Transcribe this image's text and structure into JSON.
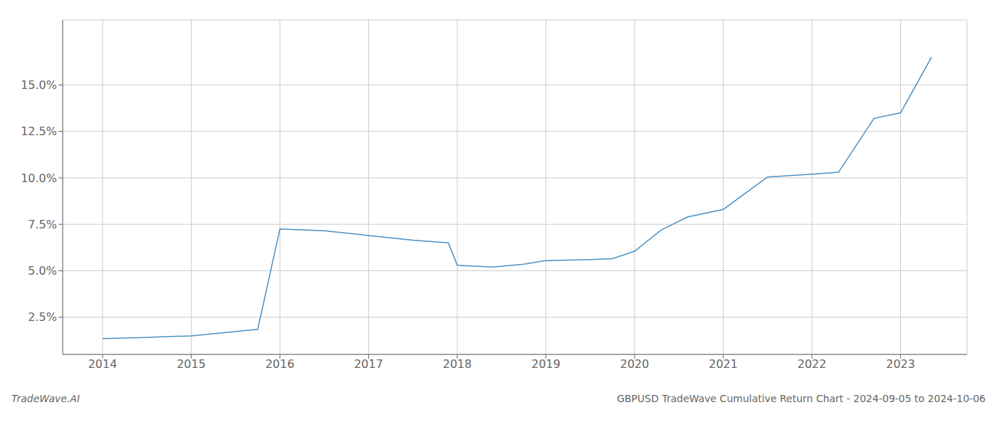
{
  "chart_data": {
    "type": "line",
    "title": "GBPUSD TradeWave Cumulative Return Chart - 2024-09-05 to 2024-10-06",
    "annotations": [
      "TradeWave.AI"
    ],
    "x": [
      2014.0,
      2014.4,
      2015.0,
      2015.75,
      2016.0,
      2016.5,
      2017.0,
      2017.5,
      2017.9,
      2018.0,
      2018.4,
      2018.75,
      2019.0,
      2019.5,
      2019.75,
      2020.0,
      2020.3,
      2020.6,
      2021.0,
      2021.5,
      2022.0,
      2022.3,
      2022.7,
      2023.0,
      2023.35
    ],
    "values": [
      1.35,
      1.4,
      1.5,
      1.85,
      7.25,
      7.15,
      6.9,
      6.65,
      6.5,
      5.3,
      5.2,
      5.35,
      5.55,
      5.6,
      5.65,
      6.05,
      7.2,
      7.9,
      8.3,
      10.05,
      10.2,
      10.3,
      13.2,
      13.5,
      16.5
    ],
    "color": "#4a90c4",
    "xlim": [
      2013.55,
      2023.75
    ],
    "ylim": [
      0.5,
      18.5
    ],
    "xticks": [
      2014,
      2015,
      2016,
      2017,
      2018,
      2019,
      2020,
      2021,
      2022,
      2023
    ],
    "yticks": [
      {
        "value": 2.5,
        "label": "2.5%"
      },
      {
        "value": 5.0,
        "label": "5.0%"
      },
      {
        "value": 7.5,
        "label": "7.5%"
      },
      {
        "value": 10.0,
        "label": "10.0%"
      },
      {
        "value": 12.5,
        "label": "12.5%"
      },
      {
        "value": 15.0,
        "label": "15.0%"
      }
    ],
    "grid": true
  }
}
